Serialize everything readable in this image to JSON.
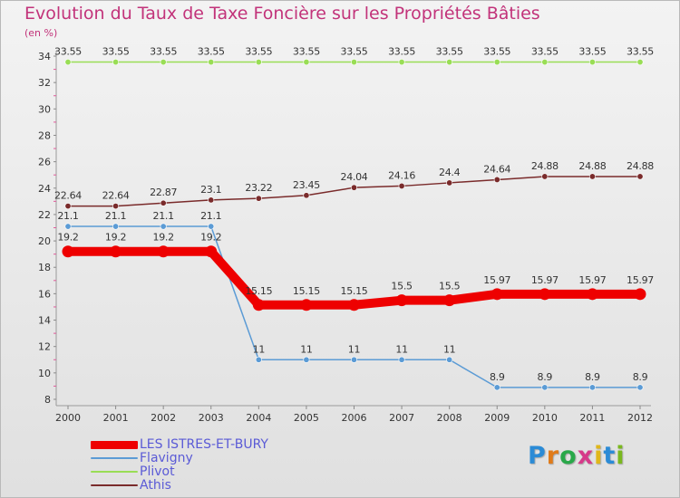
{
  "title": "Evolution du Taux de Taxe Foncière sur les Propriétés Bâties",
  "unit_label": "(en %)",
  "logo": {
    "text": "Proxiti",
    "colors": [
      "#2b8bd6",
      "#e07b1a",
      "#2aa84a",
      "#d63a8a",
      "#e0b71a",
      "#2b8bd6",
      "#7ab81e"
    ]
  },
  "chart_data": {
    "type": "line",
    "title": "Evolution du Taux de Taxe Foncière sur les Propriétés Bâties",
    "ylabel": "(en %)",
    "xlabel": "",
    "ylim": [
      8,
      34
    ],
    "y_ticks": [
      8,
      10,
      12,
      14,
      16,
      18,
      20,
      22,
      24,
      26,
      28,
      30,
      32,
      34
    ],
    "grid": false,
    "legend_position": "bottom-left",
    "x": [
      "2000",
      "2001",
      "2002",
      "2003",
      "2004",
      "2005",
      "2006",
      "2007",
      "2008",
      "2009",
      "2010",
      "2011",
      "2012"
    ],
    "series": [
      {
        "name": "LES ISTRES-ET-BURY",
        "color": "#ee0000",
        "width": 10,
        "values": [
          19.2,
          19.2,
          19.2,
          19.2,
          15.15,
          15.15,
          15.15,
          15.5,
          15.5,
          15.97,
          15.97,
          15.97,
          15.97
        ],
        "labels": [
          "19.2",
          "19.2",
          "19.2",
          "19.2",
          "15.15",
          "15.15",
          "15.15",
          "15.5",
          "15.5",
          "15.97",
          "15.97",
          "15.97",
          "15.97"
        ]
      },
      {
        "name": "Flavigny",
        "color": "#5b9bd5",
        "width": 1.5,
        "values": [
          21.1,
          21.1,
          21.1,
          21.1,
          11,
          11,
          11,
          11,
          11,
          8.9,
          8.9,
          8.9,
          8.9
        ],
        "labels": [
          "21.1",
          "21.1",
          "21.1",
          "21.1",
          "11",
          "11",
          "11",
          "11",
          "11",
          "8.9",
          "8.9",
          "8.9",
          "8.9"
        ]
      },
      {
        "name": "Plivot",
        "color": "#99dd55",
        "width": 1.5,
        "values": [
          33.55,
          33.55,
          33.55,
          33.55,
          33.55,
          33.55,
          33.55,
          33.55,
          33.55,
          33.55,
          33.55,
          33.55,
          33.55
        ],
        "labels": [
          "33.55",
          "33.55",
          "33.55",
          "33.55",
          "33.55",
          "33.55",
          "33.55",
          "33.55",
          "33.55",
          "33.55",
          "33.55",
          "33.55",
          "33.55"
        ]
      },
      {
        "name": "Athis",
        "color": "#7a2b2b",
        "width": 1.5,
        "values": [
          22.64,
          22.64,
          22.87,
          23.1,
          23.22,
          23.45,
          24.04,
          24.16,
          24.4,
          24.64,
          24.88,
          24.88,
          24.88
        ],
        "labels": [
          "22.64",
          "22.64",
          "22.87",
          "23.1",
          "23.22",
          "23.45",
          "24.04",
          "24.16",
          "24.4",
          "24.64",
          "24.88",
          "24.88",
          "24.88"
        ]
      }
    ]
  }
}
